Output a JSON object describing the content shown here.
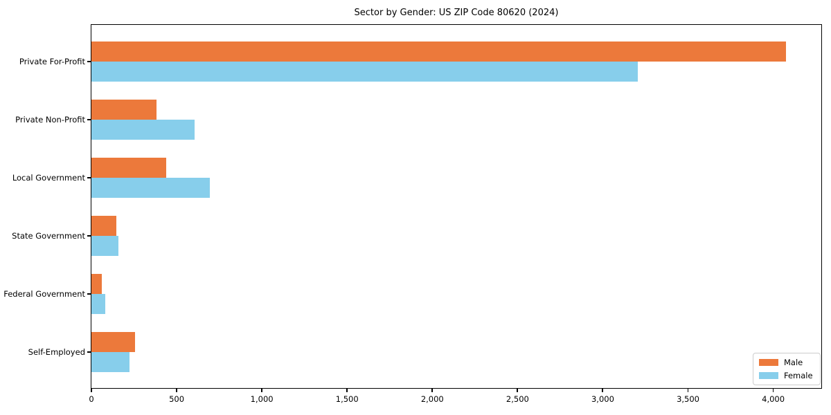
{
  "chart_data": {
    "type": "bar",
    "orientation": "horizontal",
    "title": "Sector by Gender: US ZIP Code 80620 (2024)",
    "categories": [
      "Private For-Profit",
      "Private Non-Profit",
      "Local Government",
      "State Government",
      "Federal Government",
      "Self-Employed"
    ],
    "series": [
      {
        "name": "Male",
        "color": "#EC793B",
        "values": [
          4075,
          380,
          440,
          145,
          60,
          255
        ]
      },
      {
        "name": "Female",
        "color": "#87CEEB",
        "values": [
          3205,
          605,
          695,
          160,
          80,
          225
        ]
      }
    ],
    "xlim": [
      0,
      4290
    ],
    "x_ticks": [
      0,
      500,
      1000,
      1500,
      2000,
      2500,
      3000,
      3500,
      4000
    ],
    "x_tick_labels": [
      "0",
      "500",
      "1,000",
      "1,500",
      "2,000",
      "2,500",
      "3,000",
      "3,500",
      "4,000"
    ],
    "xlabel": "",
    "ylabel": "",
    "grid": false,
    "legend": {
      "position": "lower right",
      "entries": [
        "Male",
        "Female"
      ]
    }
  }
}
